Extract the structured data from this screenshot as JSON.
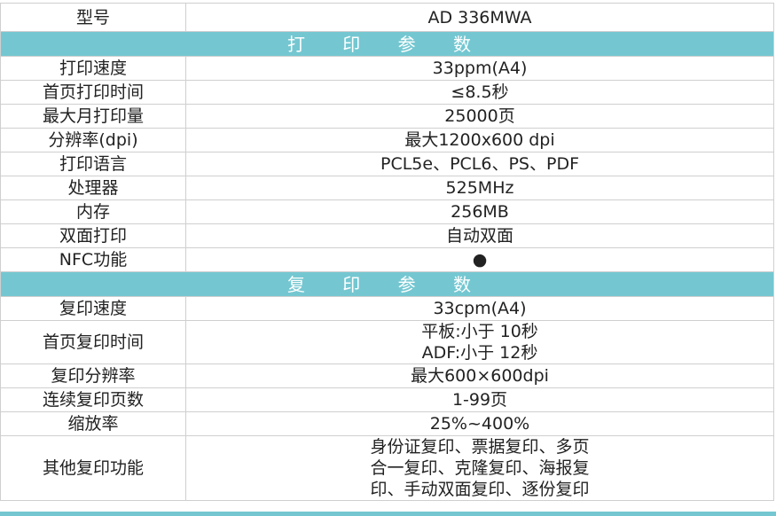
{
  "model": {
    "label": "型号",
    "value": "AD 336MWA"
  },
  "print_section": {
    "title": "打 印 参 数",
    "rows": [
      {
        "label": "打印速度",
        "value": "33ppm(A4)"
      },
      {
        "label": "首页打印时间",
        "value": "≤8.5秒"
      },
      {
        "label": "最大月打印量",
        "value": "25000页"
      },
      {
        "label": "分辨率(dpi)",
        "value": "最大1200x600 dpi"
      },
      {
        "label": "打印语言",
        "value": "PCL5e、PCL6、PS、PDF"
      },
      {
        "label": "处理器",
        "value": "525MHz"
      },
      {
        "label": "内存",
        "value": "256MB"
      },
      {
        "label": "双面打印",
        "value": "自动双面"
      },
      {
        "label": "NFC功能",
        "value": "●"
      }
    ]
  },
  "copy_section": {
    "title": "复 印 参 数",
    "rows": [
      {
        "label": "复印速度",
        "value": "33cpm(A4)"
      },
      {
        "label": "首页复印时间",
        "lines": [
          "平板:小于 10秒",
          "ADF:小于 12秒"
        ]
      },
      {
        "label": "复印分辨率",
        "value": "最大600×600dpi"
      },
      {
        "label": "连续复印页数",
        "value": "1-99页"
      },
      {
        "label": "缩放率",
        "value": "25%~400%"
      },
      {
        "label": "其他复印功能",
        "lines": [
          "身份证复印、票据复印、多页",
          "合一复印、克隆复印、海报复",
          "印、手动双面复印、逐份复印"
        ]
      }
    ]
  },
  "colors": {
    "section_header": "#74c7d1"
  }
}
